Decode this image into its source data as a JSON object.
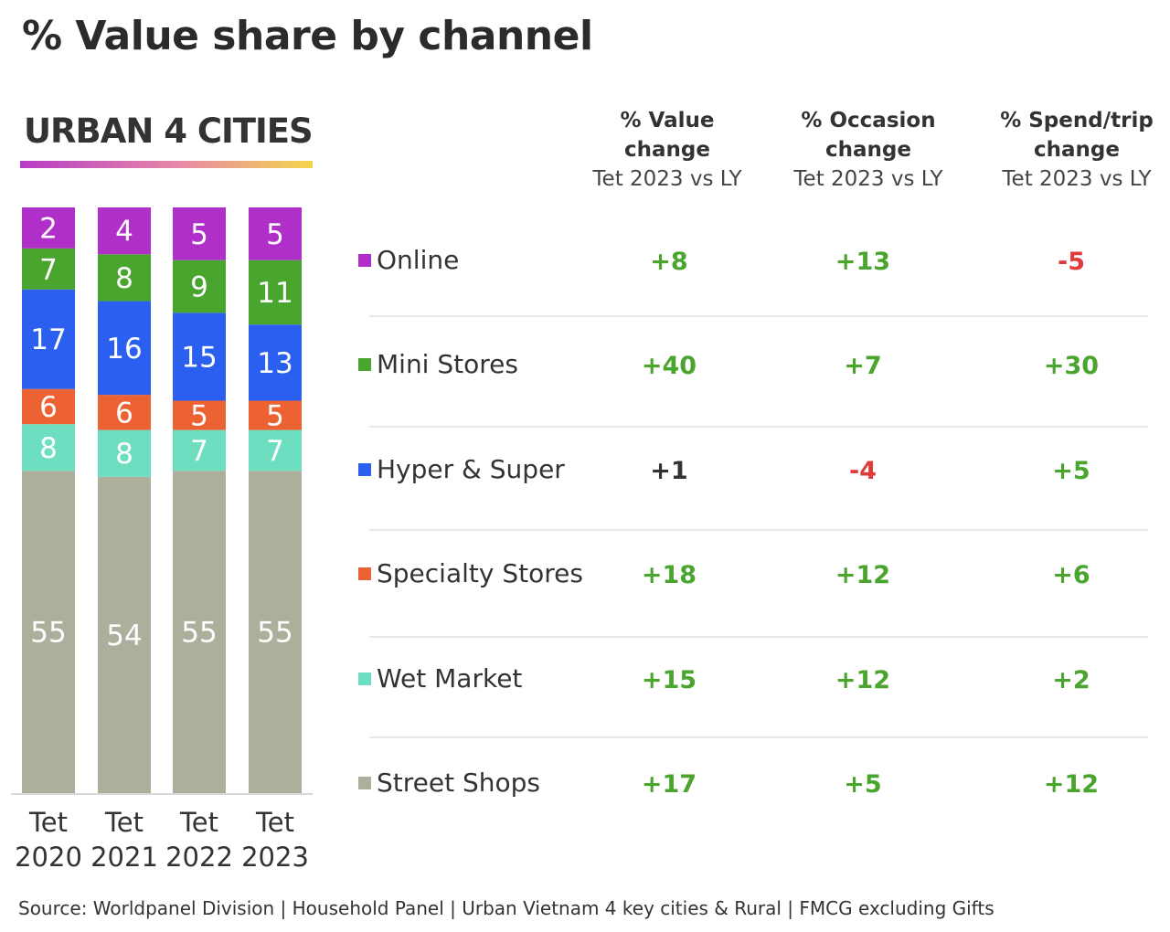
{
  "title": "% Value share by channel",
  "subtitle": "URBAN 4 CITIES",
  "source": "Source: Worldpanel Division | Household Panel | Urban Vietnam 4 key cities & Rural | FMCG excluding Gifts",
  "columns": [
    {
      "line1": "% Value",
      "line2": "change",
      "sub": "Tet 2023 vs LY"
    },
    {
      "line1": "% Occasion",
      "line2": "change",
      "sub": "Tet 2023 vs LY"
    },
    {
      "line1": "% Spend/trip",
      "line2": "change",
      "sub": "Tet 2023 vs LY"
    }
  ],
  "rows": [
    {
      "label": "Online",
      "color": "#b12fc9",
      "values": [
        "+8",
        "+13",
        "-5"
      ],
      "value_colors": [
        "#4aa52e",
        "#4aa52e",
        "#e03a3a"
      ]
    },
    {
      "label": "Mini Stores",
      "color": "#4aa52e",
      "values": [
        "+40",
        "+7",
        "+30"
      ],
      "value_colors": [
        "#4aa52e",
        "#4aa52e",
        "#4aa52e"
      ]
    },
    {
      "label": "Hyper & Super",
      "color": "#2a5ff0",
      "values": [
        "+1",
        "-4",
        "+5"
      ],
      "value_colors": [
        "#333333",
        "#e03a3a",
        "#4aa52e"
      ]
    },
    {
      "label": "Specialty Stores",
      "color": "#ec6232",
      "values": [
        "+18",
        "+12",
        "+6"
      ],
      "value_colors": [
        "#4aa52e",
        "#4aa52e",
        "#4aa52e"
      ]
    },
    {
      "label": "Wet Market",
      "color": "#6ddfc0",
      "values": [
        "+15",
        "+12",
        "+2"
      ],
      "value_colors": [
        "#4aa52e",
        "#4aa52e",
        "#4aa52e"
      ]
    },
    {
      "label": "Street Shops",
      "color": "#aeae9d",
      "values": [
        "+17",
        "+5",
        "+12"
      ],
      "value_colors": [
        "#4aa52e",
        "#4aa52e",
        "#4aa52e"
      ]
    }
  ],
  "chart_data": {
    "type": "bar",
    "stacked": true,
    "categories": [
      [
        "Tet",
        "2020"
      ],
      [
        "Tet",
        "2021"
      ],
      [
        "Tet",
        "2022"
      ],
      [
        "Tet",
        "2023"
      ]
    ],
    "series": [
      {
        "name": "Street Shops",
        "color": "#aeae9d",
        "values": [
          55,
          54,
          55,
          55
        ]
      },
      {
        "name": "Wet Market",
        "color": "#6ddfc0",
        "values": [
          8,
          8,
          7,
          7
        ]
      },
      {
        "name": "Specialty Stores",
        "color": "#ec6232",
        "values": [
          6,
          6,
          5,
          5
        ]
      },
      {
        "name": "Hyper & Super",
        "color": "#2a5ff0",
        "values": [
          17,
          16,
          15,
          13
        ]
      },
      {
        "name": "Mini Stores",
        "color": "#4aa52e",
        "values": [
          7,
          8,
          9,
          11
        ]
      },
      {
        "name": "Online",
        "color": "#b12fc9",
        "values": [
          2,
          4,
          5,
          5
        ]
      }
    ]
  }
}
